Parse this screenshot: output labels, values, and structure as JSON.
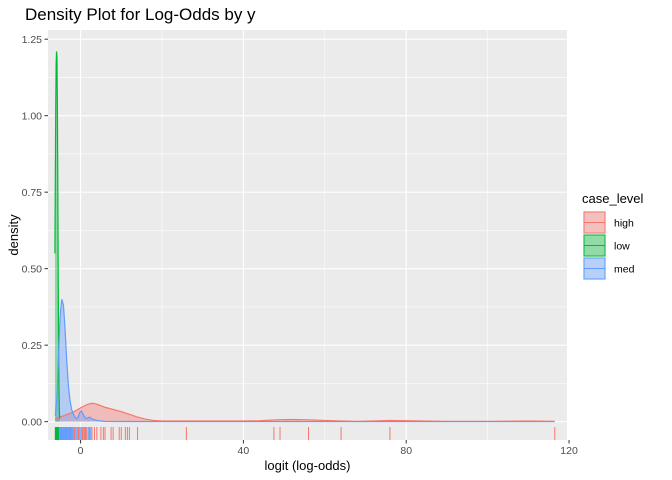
{
  "chart_data": {
    "type": "area",
    "title": "Density Plot for Log-Odds by y",
    "xlabel": "logit (log-odds)",
    "ylabel": "density",
    "xlim": [
      -8,
      119.5
    ],
    "ylim": [
      -0.06,
      1.28
    ],
    "x_ticks": [
      0,
      40,
      80,
      120
    ],
    "x_tick_labels": [
      "0",
      "40",
      "80",
      "120"
    ],
    "y_ticks": [
      0,
      0.25,
      0.5,
      0.75,
      1.0,
      1.25
    ],
    "y_tick_labels": [
      "0.00",
      "0.25",
      "0.50",
      "0.75",
      "1.00",
      "1.25"
    ],
    "grid": true,
    "legend": {
      "title": "case_level",
      "position": "right",
      "entries": [
        "high",
        "low",
        "med"
      ]
    },
    "series": [
      {
        "name": "high",
        "color": "#F8766D",
        "x": [
          -6.2,
          -5,
          -4,
          -3,
          -2,
          -1,
          0,
          1,
          2,
          3,
          4,
          5,
          6,
          8,
          10,
          12,
          14,
          16,
          18,
          20,
          25,
          30,
          35,
          40,
          44,
          48,
          52,
          56,
          60,
          64,
          68,
          72,
          76,
          80,
          90,
          100,
          110,
          116.5
        ],
        "y": [
          0.01,
          0.015,
          0.02,
          0.025,
          0.03,
          0.037,
          0.045,
          0.052,
          0.058,
          0.06,
          0.057,
          0.052,
          0.047,
          0.04,
          0.033,
          0.024,
          0.015,
          0.008,
          0.004,
          0.002,
          0.002,
          0.002,
          0.002,
          0.002,
          0.003,
          0.006,
          0.007,
          0.006,
          0.004,
          0.002,
          0.001,
          0.002,
          0.004,
          0.003,
          0.001,
          0.001,
          0.002,
          0.001
        ]
      },
      {
        "name": "low",
        "color": "#00BA38",
        "x": [
          -6.3,
          -6.2,
          -6.1,
          -6.0,
          -5.9,
          -5.8,
          -5.7,
          -5.6,
          -5.5,
          -5.4,
          -5.3,
          -5.2,
          -5.1
        ],
        "y": [
          0.55,
          0.8,
          1.02,
          1.17,
          1.21,
          1.19,
          1.05,
          0.8,
          0.5,
          0.25,
          0.1,
          0.03,
          0.01
        ]
      },
      {
        "name": "med",
        "color": "#619CFF",
        "x": [
          -6.2,
          -5.8,
          -5.4,
          -5.0,
          -4.6,
          -4.2,
          -3.8,
          -3.4,
          -3.0,
          -2.6,
          -2.2,
          -1.8,
          -1.4,
          -1.0,
          -0.6,
          -0.2,
          0.2,
          0.6,
          1.0,
          1.4,
          1.8,
          2.2,
          3,
          4,
          5,
          6,
          10,
          20,
          40,
          60,
          80,
          100,
          116.5
        ],
        "y": [
          0.02,
          0.08,
          0.22,
          0.35,
          0.4,
          0.38,
          0.3,
          0.2,
          0.12,
          0.07,
          0.04,
          0.025,
          0.015,
          0.01,
          0.015,
          0.03,
          0.035,
          0.025,
          0.015,
          0.01,
          0.012,
          0.015,
          0.008,
          0.004,
          0.002,
          0.001,
          0.0005,
          0.0003,
          0.0002,
          0.0002,
          0.0002,
          0.0002,
          0.0002
        ]
      }
    ],
    "rugs": [
      {
        "series": "low",
        "x": [
          -6.2,
          -6.1,
          -6.0,
          -5.95,
          -5.9,
          -5.85,
          -5.8,
          -5.75,
          -5.7,
          -5.65,
          -5.6,
          -5.5,
          -5.4,
          -5.3
        ]
      },
      {
        "series": "med",
        "x": [
          -5.2,
          -5.0,
          -4.8,
          -4.6,
          -4.4,
          -4.2,
          -4.0,
          -3.8,
          -3.6,
          -3.4,
          -3.2,
          -3.0,
          -2.8,
          -2.6,
          -2.4,
          -2.2,
          -2.0,
          -1.7,
          -1.4,
          -1.1,
          -0.8,
          -0.5,
          -0.2,
          0.1,
          0.4,
          0.8,
          1.2,
          1.6,
          2.0,
          2.5
        ]
      },
      {
        "series": "high",
        "x": [
          -1.5,
          -0.5,
          0.5,
          1.0,
          1.5,
          2.2,
          2.8,
          3.4,
          4.0,
          5.0,
          5.6,
          6.0,
          7.5,
          8.0,
          9.5,
          10.0,
          11.0,
          11.5,
          12.0,
          14.0,
          26.0,
          47.5,
          49.0,
          56.0,
          64.0,
          76.0,
          116.5
        ]
      }
    ]
  }
}
